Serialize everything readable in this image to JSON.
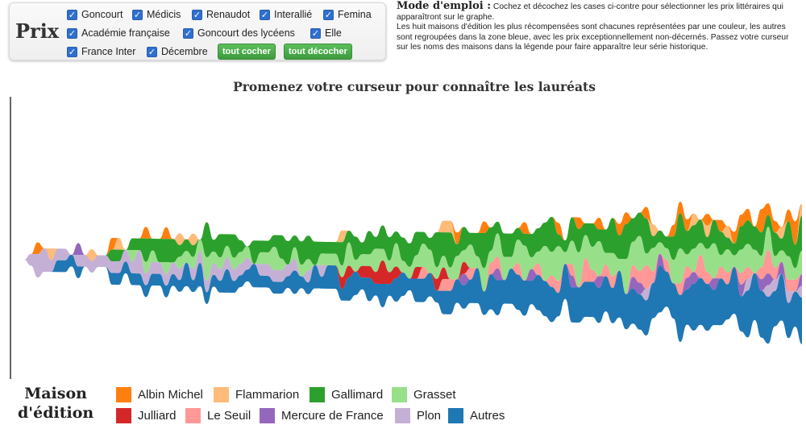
{
  "prix": {
    "label": "Prix",
    "prizes": [
      "Goncourt",
      "Médicis",
      "Renaudot",
      "Interallié",
      "Femina",
      "Académie française",
      "Goncourt des lycéens",
      "Elle",
      "France Inter",
      "Décembre"
    ],
    "check_all_label": "tout cocher",
    "uncheck_all_label": "tout décocher"
  },
  "instructions": {
    "title": "Mode d'emploi :",
    "text1": " Cochez et décochez les cases ci-contre pour sélectionner les prix littéraires qui apparaîtront sur le graphe.",
    "text2": "Les huit maisons d'édition les plus récompensées sont chacunes représentées par une couleur, les autres sont regroupées dans la zone bleue, avec les prix exceptionnellement non-décernés. Passez votre curseur sur les noms des maisons dans la légende pour faire apparaître leur série historique."
  },
  "legend": {
    "title_line1": "Maison",
    "title_line2": "d'édition"
  },
  "chart_data": {
    "type": "area",
    "layout": "streamgraph",
    "title": "Promenez votre curseur pour connaître les lauréats",
    "x": [
      0,
      1,
      2,
      3,
      4,
      5,
      6,
      7,
      8,
      9,
      10,
      11,
      12,
      13,
      14,
      15,
      16,
      17,
      18,
      19,
      20,
      21,
      22,
      23,
      24,
      25,
      26,
      27,
      28,
      29,
      30,
      31,
      32,
      33,
      34,
      35,
      36,
      37,
      38,
      39,
      40,
      41,
      42,
      43,
      44,
      45,
      46,
      47,
      48,
      49,
      50,
      51,
      52,
      53,
      54,
      55,
      56,
      57,
      58,
      59,
      60,
      61,
      62,
      63,
      64,
      65,
      66,
      67,
      68,
      69,
      70,
      71,
      72,
      73,
      74,
      75,
      76,
      77,
      78,
      79,
      80,
      81,
      82,
      83,
      84,
      85,
      86,
      87,
      88,
      89,
      90,
      91,
      92,
      93,
      94,
      95,
      96,
      97,
      98,
      99,
      100,
      101,
      102,
      103,
      104,
      105,
      106,
      107,
      108,
      109,
      110,
      111,
      112,
      113,
      114,
      115
    ],
    "series": [
      {
        "name": "Albin Michel",
        "color": "#ff7f0e",
        "values": [
          0,
          0,
          1,
          0,
          0,
          0,
          0,
          0,
          0,
          0,
          0,
          0,
          0,
          1,
          0,
          0,
          0,
          0,
          1,
          0,
          0,
          1,
          0,
          0,
          0,
          0,
          0,
          0,
          0,
          0,
          0,
          0,
          0,
          0,
          0,
          0,
          0,
          0,
          0,
          0,
          0,
          0,
          0,
          0,
          0,
          0,
          0,
          0,
          0,
          0,
          0,
          0,
          0,
          0,
          0,
          0,
          0,
          0,
          0,
          0,
          0,
          0,
          0,
          0,
          1,
          0,
          0,
          0,
          1,
          0,
          0,
          0,
          0,
          0,
          1,
          0,
          0,
          0,
          0,
          1,
          0,
          0,
          1,
          0,
          0,
          1,
          0,
          0,
          1,
          1,
          0,
          0,
          1,
          0,
          0,
          0,
          1,
          1,
          1,
          0,
          0,
          1,
          0,
          1,
          0,
          1,
          1,
          1,
          0,
          2,
          1,
          1,
          0,
          1,
          2,
          0
        ]
      },
      {
        "name": "Flammarion",
        "color": "#ffbb78",
        "values": [
          0,
          0,
          0,
          0,
          1,
          0,
          0,
          0,
          0,
          0,
          1,
          0,
          0,
          0,
          1,
          0,
          0,
          0,
          0,
          0,
          0,
          0,
          0,
          1,
          0,
          1,
          0,
          0,
          0,
          0,
          0,
          0,
          0,
          0,
          0,
          0,
          0,
          0,
          0,
          0,
          0,
          0,
          0,
          0,
          0,
          0,
          0,
          1,
          0,
          0,
          0,
          0,
          0,
          0,
          0,
          0,
          0,
          0,
          0,
          0,
          0,
          0,
          1,
          1,
          0,
          0,
          0,
          0,
          0,
          0,
          0,
          0,
          0,
          0,
          0,
          0,
          0,
          0,
          0,
          0,
          0,
          0,
          0,
          0,
          0,
          0,
          0,
          0,
          0,
          0,
          0,
          0,
          0,
          1,
          0,
          0,
          0,
          0,
          0,
          1,
          0,
          1,
          0,
          0,
          1,
          0,
          0,
          0,
          0,
          0,
          0,
          0,
          1,
          0,
          0,
          1
        ]
      },
      {
        "name": "Gallimard",
        "color": "#2ca02c",
        "values": [
          0,
          0,
          0,
          0,
          0,
          0,
          0,
          0,
          0,
          0,
          0,
          0,
          0,
          1,
          1,
          0,
          1,
          1,
          2,
          1,
          2,
          2,
          2,
          1,
          1,
          1,
          0,
          3,
          1,
          2,
          1,
          2,
          1,
          0,
          2,
          1,
          1,
          1,
          2,
          2,
          1,
          2,
          2,
          2,
          1,
          1,
          1,
          2,
          1,
          2,
          1,
          2,
          1,
          2,
          2,
          1,
          2,
          2,
          2,
          1,
          1,
          3,
          2,
          3,
          1,
          2,
          1,
          2,
          3,
          2,
          1,
          2,
          2,
          1,
          1,
          2,
          2,
          2,
          3,
          1,
          1,
          2,
          2,
          1,
          2,
          1,
          2,
          3,
          2,
          3,
          2,
          2,
          3,
          1,
          1,
          1,
          2,
          3,
          2,
          2,
          2,
          1,
          2,
          2,
          1,
          1,
          2,
          2,
          2,
          2,
          1,
          2,
          1,
          3,
          2,
          3
        ]
      },
      {
        "name": "Grasset",
        "color": "#98df8a",
        "values": [
          0,
          0,
          0,
          0,
          0,
          0,
          0,
          0,
          0,
          0,
          0,
          0,
          0,
          0,
          0,
          0,
          1,
          0,
          1,
          1,
          0,
          1,
          0,
          1,
          1,
          1,
          1,
          2,
          1,
          1,
          1,
          1,
          1,
          1,
          0,
          1,
          1,
          2,
          1,
          0,
          1,
          1,
          1,
          0,
          1,
          1,
          1,
          1,
          2,
          1,
          1,
          1,
          2,
          1,
          1,
          2,
          1,
          1,
          1,
          2,
          2,
          1,
          1,
          1,
          2,
          1,
          2,
          1,
          2,
          1,
          2,
          2,
          1,
          2,
          3,
          1,
          1,
          3,
          2,
          3,
          1,
          2,
          3,
          2,
          2,
          3,
          1,
          2,
          1,
          3,
          2,
          3,
          1,
          2,
          1,
          1,
          2,
          3,
          1,
          2,
          1,
          2,
          3,
          1,
          2,
          1,
          2,
          2,
          2,
          1,
          2,
          1,
          1,
          2,
          1,
          2
        ]
      },
      {
        "name": "Julliard",
        "color": "#d62728",
        "values": [
          0,
          0,
          0,
          0,
          0,
          0,
          0,
          0,
          0,
          0,
          0,
          0,
          0,
          0,
          0,
          0,
          0,
          0,
          0,
          0,
          0,
          0,
          0,
          0,
          0,
          0,
          0,
          0,
          0,
          0,
          0,
          0,
          0,
          0,
          0,
          0,
          0,
          0,
          0,
          0,
          0,
          0,
          0,
          0,
          0,
          0,
          0,
          1,
          1,
          0,
          1,
          1,
          1,
          2,
          1,
          1,
          0,
          0,
          1,
          0,
          0,
          1,
          1,
          0,
          0,
          1,
          0,
          0,
          0,
          0,
          0,
          0,
          0,
          0,
          0,
          0,
          0,
          0,
          0,
          0,
          0,
          0,
          0,
          0,
          0,
          0,
          0,
          0,
          0,
          0,
          0,
          0,
          0,
          0,
          0,
          0,
          0,
          0,
          0,
          0,
          0,
          0,
          0,
          0,
          0,
          0,
          0,
          0,
          0,
          0,
          0,
          0,
          0,
          0,
          0,
          0
        ]
      },
      {
        "name": "Le Seuil",
        "color": "#ff9896",
        "values": [
          0,
          0,
          0,
          0,
          0,
          0,
          0,
          0,
          0,
          0,
          0,
          0,
          0,
          0,
          0,
          0,
          0,
          0,
          0,
          0,
          0,
          0,
          0,
          0,
          0,
          0,
          0,
          0,
          0,
          0,
          0,
          0,
          0,
          0,
          0,
          0,
          0,
          0,
          0,
          0,
          0,
          0,
          0,
          0,
          0,
          0,
          0,
          0,
          0,
          0,
          0,
          0,
          0,
          0,
          0,
          0,
          0,
          0,
          0,
          1,
          0,
          0,
          1,
          1,
          0,
          0,
          1,
          0,
          0,
          1,
          1,
          0,
          0,
          1,
          0,
          0,
          1,
          0,
          1,
          1,
          0,
          1,
          0,
          2,
          1,
          0,
          1,
          1,
          0,
          0,
          1,
          1,
          2,
          1,
          0,
          1,
          0,
          1,
          1,
          0,
          2,
          1,
          0,
          1,
          1,
          0,
          1,
          1,
          0,
          1,
          2,
          1,
          0,
          1,
          1,
          0
        ]
      },
      {
        "name": "Mercure de France",
        "color": "#9467bd",
        "values": [
          0,
          0,
          0,
          0,
          0,
          0,
          0,
          0,
          1,
          0,
          0,
          0,
          0,
          0,
          0,
          0,
          0,
          0,
          0,
          0,
          0,
          0,
          0,
          0,
          0,
          0,
          0,
          0,
          0,
          0,
          0,
          0,
          0,
          0,
          0,
          0,
          0,
          0,
          0,
          0,
          0,
          0,
          0,
          0,
          0,
          0,
          0,
          0,
          0,
          0,
          0,
          0,
          0,
          0,
          0,
          0,
          0,
          0,
          0,
          0,
          0,
          0,
          0,
          0,
          0,
          1,
          0,
          0,
          0,
          0,
          1,
          0,
          0,
          0,
          0,
          1,
          0,
          0,
          0,
          0,
          0,
          1,
          0,
          0,
          0,
          1,
          0,
          0,
          0,
          0,
          1,
          1,
          0,
          0,
          1,
          0,
          0,
          0,
          1,
          1,
          0,
          0,
          1,
          0,
          0,
          0,
          1,
          0,
          0,
          1,
          1,
          0,
          1,
          0,
          0,
          1
        ]
      },
      {
        "name": "Plon",
        "color": "#c5b0d5",
        "values": [
          0,
          1,
          2,
          2,
          1,
          1,
          1,
          0,
          1,
          1,
          1,
          1,
          1,
          1,
          1,
          1,
          1,
          2,
          1,
          1,
          1,
          1,
          1,
          1,
          0,
          1,
          1,
          1,
          1,
          1,
          1,
          1,
          1,
          1,
          0,
          1,
          1,
          1,
          1,
          1,
          1,
          0,
          1,
          0,
          1,
          0,
          0,
          0,
          0,
          0,
          0,
          0,
          0,
          0,
          0,
          0,
          0,
          0,
          0,
          0,
          0,
          0,
          0,
          0,
          0,
          0,
          0,
          0,
          0,
          0,
          0,
          0,
          0,
          0,
          0,
          0,
          0,
          0,
          0,
          0,
          0,
          0,
          0,
          0,
          0,
          0,
          0,
          0,
          0,
          0,
          0,
          0,
          1,
          0,
          0,
          0,
          0,
          0,
          0,
          0,
          0,
          0,
          0,
          0,
          0,
          0,
          0,
          1,
          0,
          0,
          1,
          1,
          0,
          1,
          0,
          1
        ]
      },
      {
        "name": "Autres",
        "color": "#1f77b4",
        "values": [
          0,
          0,
          0,
          0,
          0,
          1,
          1,
          1,
          1,
          0,
          0,
          0,
          0,
          1,
          1,
          1,
          1,
          1,
          1,
          1,
          1,
          1,
          1,
          1,
          2,
          1,
          2,
          1,
          1,
          1,
          2,
          1,
          1,
          1,
          2,
          1,
          1,
          1,
          1,
          1,
          2,
          1,
          1,
          2,
          1,
          2,
          2,
          1,
          2,
          2,
          1,
          2,
          1,
          2,
          1,
          2,
          2,
          1,
          2,
          2,
          2,
          1,
          2,
          2,
          2,
          2,
          2,
          3,
          2,
          3,
          3,
          2,
          3,
          3,
          3,
          2,
          3,
          3,
          3,
          2,
          3,
          3,
          3,
          3,
          3,
          3,
          3,
          3,
          4,
          3,
          3,
          3,
          3,
          3,
          4,
          3,
          3,
          4,
          3,
          4,
          4,
          4,
          3,
          4,
          3,
          4,
          3,
          4,
          4,
          4,
          4,
          3,
          4,
          3,
          3,
          4
        ]
      }
    ]
  }
}
